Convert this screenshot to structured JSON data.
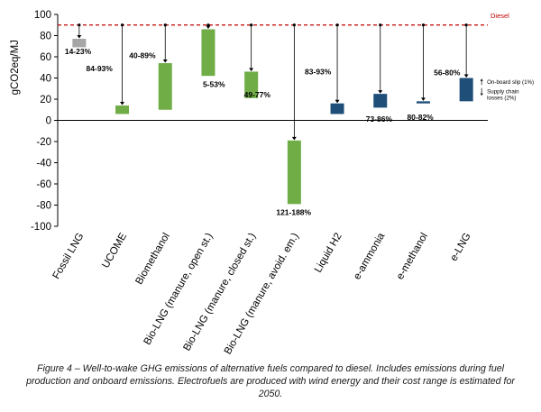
{
  "chart_data": {
    "type": "bar",
    "ylabel": "gCO2eq/MJ",
    "ylim": [
      -100,
      100
    ],
    "yticks": [
      -100,
      -80,
      -60,
      -40,
      -20,
      0,
      20,
      40,
      60,
      80,
      100
    ],
    "reference": {
      "label": "Diesel",
      "value": 90,
      "color": "#c00000"
    },
    "categories": [
      "Fossil LNG",
      "UCOME",
      "Biomethanol",
      "Bio-LNG (manure, open st.)",
      "Bio-LNG (manure, closed st.)",
      "Bio-LNG (manure, avoid. em.)",
      "Liquid H2",
      "e-ammonia",
      "e-methanol",
      "e-LNG"
    ],
    "bars": [
      {
        "low": 69,
        "high": 77,
        "color": "#a6a6a6",
        "reduction": "14-23%"
      },
      {
        "low": 6,
        "high": 14,
        "color": "#70ad47",
        "reduction": "84-93%"
      },
      {
        "low": 10,
        "high": 54,
        "color": "#70ad47",
        "reduction": "40-89%"
      },
      {
        "low": 42,
        "high": 86,
        "color": "#70ad47",
        "reduction": "5-53%"
      },
      {
        "low": 21,
        "high": 46,
        "color": "#70ad47",
        "reduction": "49-77%"
      },
      {
        "low": -79,
        "high": -19,
        "color": "#70ad47",
        "reduction": "121-188%"
      },
      {
        "low": 6,
        "high": 16,
        "color": "#1f4e79",
        "reduction": "83-93%"
      },
      {
        "low": 12,
        "high": 25,
        "color": "#1f4e79",
        "reduction": "73-86%"
      },
      {
        "low": 16,
        "high": 18,
        "color": "#1f4e79",
        "reduction": "80-82%"
      },
      {
        "low": 18,
        "high": 40,
        "color": "#1f4e79",
        "reduction": "56-80%"
      }
    ],
    "annotations": {
      "onboard_slip": "On-board slip (1%)",
      "supply_chain_line1": "Supply chain",
      "supply_chain_line2": "losses (2%)"
    }
  },
  "caption": "Figure 4 – Well-to-wake GHG emissions of alternative fuels compared to diesel. Includes emissions during fuel production and onboard emissions. Electrofuels are produced with wind energy and their cost range is estimated for 2050."
}
